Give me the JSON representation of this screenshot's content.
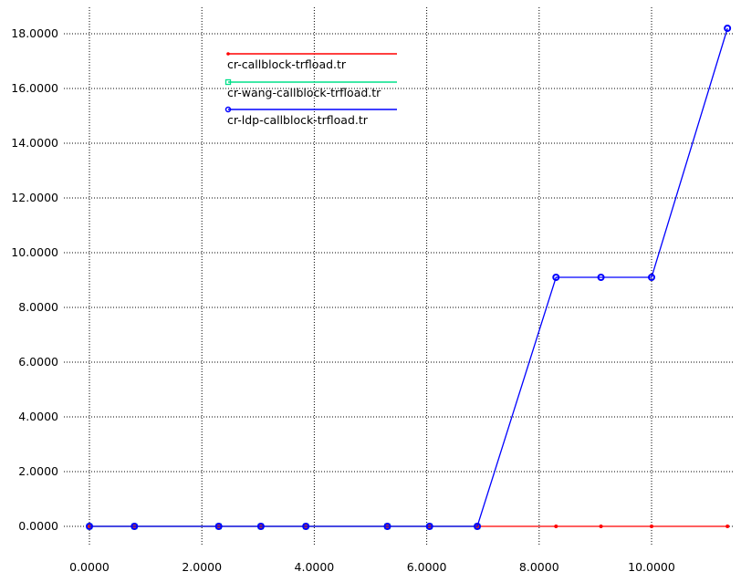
{
  "chart_data": {
    "type": "line",
    "title": "",
    "xlabel": "",
    "ylabel": "",
    "xlim": [
      0,
      11.4
    ],
    "ylim": [
      0,
      18
    ],
    "x_ticks": [
      0,
      2,
      4,
      6,
      8,
      10
    ],
    "y_ticks": [
      0,
      2,
      4,
      6,
      8,
      10,
      12,
      14,
      16,
      18
    ],
    "x_tick_labels": [
      "0.0000",
      "2.0000",
      "4.0000",
      "6.0000",
      "8.0000",
      "10.0000"
    ],
    "y_tick_labels": [
      "0.0000",
      "2.0000",
      "4.0000",
      "6.0000",
      "8.0000",
      "10.0000",
      "12.0000",
      "14.0000",
      "16.0000",
      "18.0000"
    ],
    "grid": true,
    "legend_position": "top-left",
    "series": [
      {
        "name": "cr-callblock-trfload.tr",
        "color": "#ff0000",
        "marker": "dot",
        "x": [
          0.0,
          0.8,
          2.3,
          3.05,
          3.85,
          5.3,
          6.05,
          6.9,
          8.3,
          9.1,
          10.0,
          11.35
        ],
        "y": [
          0,
          0,
          0,
          0,
          0,
          0,
          0,
          0,
          0,
          0,
          0,
          0
        ]
      },
      {
        "name": "cr-wang-callblock-trfload.tr",
        "color": "#00e08a",
        "marker": "square",
        "x": [
          0.0,
          0.8,
          2.3,
          3.05,
          3.85,
          5.3,
          6.05,
          6.9
        ],
        "y": [
          0,
          0,
          0,
          0,
          0,
          0,
          0,
          0
        ]
      },
      {
        "name": "cr-ldp-callblock-trfload.tr",
        "color": "#0000ff",
        "marker": "circle",
        "x": [
          0.0,
          0.8,
          2.3,
          3.05,
          3.85,
          5.3,
          6.05,
          6.9,
          8.3,
          9.1,
          10.0,
          11.35
        ],
        "y": [
          0,
          0,
          0,
          0,
          0,
          0,
          0,
          0,
          9.1,
          9.1,
          9.1,
          18.2
        ]
      }
    ]
  }
}
